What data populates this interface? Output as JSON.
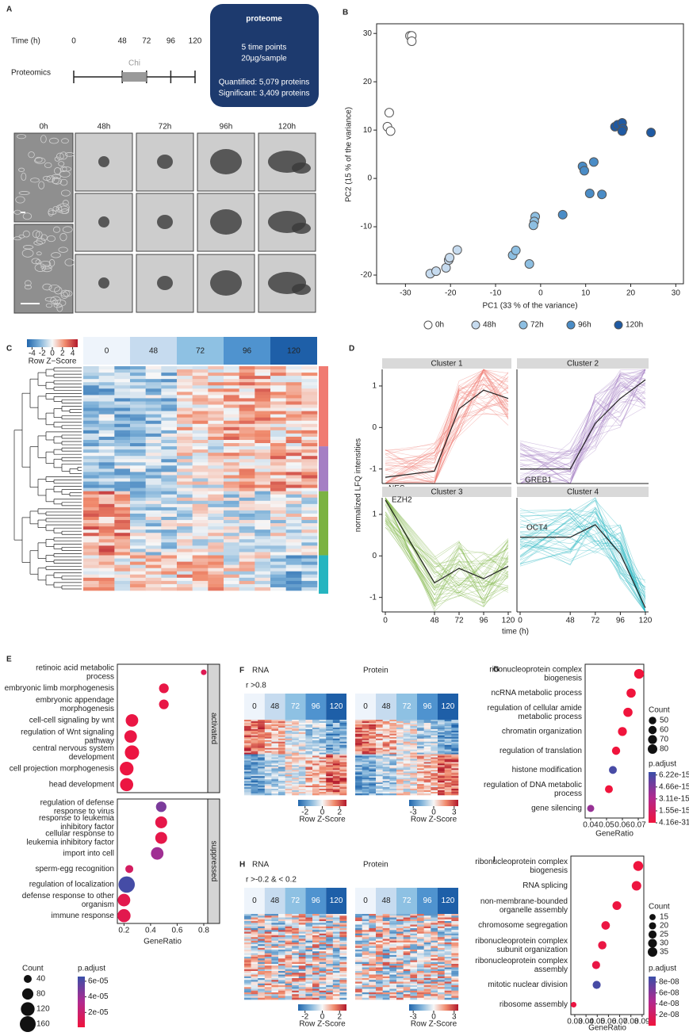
{
  "chart_data": [
    {
      "type": "timeline",
      "panel": "A",
      "axis_label": "Time (h)",
      "xlim": [
        0,
        120
      ],
      "xticks": [
        0,
        48,
        72,
        96,
        120
      ],
      "row_label": "Proteomics",
      "treatment": "Chi",
      "box_title": "proteome",
      "box_lines": [
        "5 time points",
        "20µg/sample",
        "Quantified: 5,079 proteins",
        "Significant: 3,409 proteins"
      ],
      "image_labels": [
        "0h",
        "48h",
        "72h",
        "96h",
        "120h"
      ]
    },
    {
      "type": "scatter",
      "panel": "B",
      "xlabel": "PC1 (33 % of the variance)",
      "ylabel": "PC2 (15  % of the variance)",
      "xlim": [
        -36.4,
        31.7
      ],
      "ylim": [
        -21.8,
        32
      ],
      "xticks": [
        -30,
        -20,
        -10,
        0,
        10,
        20,
        30
      ],
      "yticks": [
        -20,
        -10,
        0,
        10,
        20,
        30
      ],
      "legend": "bottom",
      "series": [
        {
          "name": "0h",
          "color": "#ffffff",
          "x": [
            -29,
            -28.6,
            -28.6,
            -33.6,
            -34,
            -33.3
          ],
          "y": [
            29.5,
            29.5,
            28.4,
            13.6,
            10.7,
            9.8
          ]
        },
        {
          "name": "48h",
          "color": "#c6dbef",
          "x": [
            -24.5,
            -23.2,
            -21,
            -20.4,
            -20.2,
            -18.5
          ],
          "y": [
            -19.7,
            -19.2,
            -18.5,
            -16.9,
            -16.4,
            -14.8
          ]
        },
        {
          "name": "72h",
          "color": "#8dbfe2",
          "x": [
            -6.2,
            -5.5,
            -2.5,
            -1.2,
            -1.4,
            -1.6
          ],
          "y": [
            -15.9,
            -14.9,
            -17.7,
            -7.9,
            -8.9,
            -9.7
          ]
        },
        {
          "name": "96h",
          "color": "#4a8cc6",
          "x": [
            4.9,
            9.3,
            9.7,
            10.9,
            11.8,
            13.6
          ],
          "y": [
            -7.5,
            2.5,
            1.6,
            -3.1,
            3.4,
            -3.3
          ]
        },
        {
          "name": "120h",
          "color": "#1f5aa3",
          "x": [
            16.5,
            17.1,
            18.1,
            18.3,
            18.1,
            24.5
          ],
          "y": [
            10.7,
            11.1,
            11.5,
            10.3,
            9.8,
            9.5
          ]
        }
      ]
    },
    {
      "type": "heatmap",
      "panel": "C",
      "columns": [
        0,
        48,
        72,
        96,
        120
      ],
      "colorbar_label": "Row Z−Score",
      "colorbar_ticks": [
        -4,
        -2,
        0,
        2,
        4
      ],
      "colorbar_lim": [
        -5,
        5
      ]
    },
    {
      "type": "line",
      "panel": "D",
      "xlabel": "time (h)",
      "ylabel": "normalized LFQ intensities",
      "xlim": [
        0,
        120
      ],
      "xticks": [
        0,
        48,
        72,
        96,
        120
      ],
      "ylim": [
        -1.35,
        1.4
      ],
      "yticks": [
        -1,
        0,
        1
      ],
      "x": [
        0,
        48,
        72,
        96,
        120
      ],
      "facets": [
        {
          "title": "Cluster 1",
          "color": "#f07b72",
          "label": "NES",
          "values": [
            -1.2,
            -1.05,
            0.45,
            0.9,
            0.7
          ]
        },
        {
          "title": "Cluster 2",
          "color": "#a57fc4",
          "label": "GREB1",
          "values": [
            -1.0,
            -1.0,
            0.1,
            0.7,
            1.15
          ]
        },
        {
          "title": "Cluster 3",
          "color": "#7cb342",
          "label": "EZH2",
          "values": [
            1.35,
            -0.65,
            -0.3,
            -0.55,
            -0.25
          ]
        },
        {
          "title": "Cluster 4",
          "color": "#26b5c0",
          "label": "OCT4",
          "values": [
            0.45,
            0.45,
            0.75,
            0.05,
            -1.25
          ]
        }
      ]
    },
    {
      "type": "dot",
      "panel": "E",
      "xlabel": "GeneRatio",
      "xlim": [
        0.15,
        0.83
      ],
      "xticks": [
        0.2,
        0.4,
        0.6,
        0.8
      ],
      "facets": [
        {
          "title": "activated",
          "categories": [
            "retinoic acid metabolic\nprocess",
            "embryonic limb morphogenesis",
            "embryonic appendage\nmorphogenesis",
            "cell-cell signaling by wnt",
            "regulation of Wnt signaling\npathway",
            "central nervous system\ndevelopment",
            "cell projection morphogenesis",
            "head development"
          ],
          "x": [
            0.8,
            0.5,
            0.5,
            0.26,
            0.25,
            0.26,
            0.22,
            0.22
          ],
          "count": [
            20,
            60,
            60,
            100,
            100,
            130,
            120,
            110
          ],
          "p_adjust": [
            1e-05,
            5e-06,
            5e-06,
            4e-06,
            4e-06,
            3e-06,
            3e-06,
            3e-06
          ]
        },
        {
          "title": "suppressed",
          "categories": [
            "regulation of defense\nresponse to virus",
            "response to leukemia\ninhibitory factor",
            "cellular response to\nleukemia inhibitory factor",
            "import into cell",
            "sperm-egg recognition",
            "regulation of localization",
            "defense response to other\norganism",
            "immune response"
          ],
          "x": [
            0.48,
            0.48,
            0.48,
            0.45,
            0.24,
            0.22,
            0.2,
            0.2
          ],
          "count": [
            70,
            90,
            90,
            100,
            40,
            170,
            100,
            110
          ],
          "p_adjust": [
            4.8e-05,
            6e-06,
            6e-06,
            3.8e-05,
            1.5e-05,
            6.3e-05,
            8e-06,
            8e-06
          ]
        }
      ],
      "size_legend": {
        "title": "Count",
        "values": [
          40,
          80,
          120,
          160
        ]
      },
      "color_legend": {
        "title": "p.adjust",
        "colors": [
          "#f0143c",
          "#b02a90",
          "#3a4fa8"
        ],
        "lim": [
          1e-06,
          6.6e-05
        ],
        "ticks": [
          {
            "value": 6e-05,
            "label": "6e-05"
          },
          {
            "value": 4e-05,
            "label": "4e-05"
          },
          {
            "value": 2e-05,
            "label": "2e-05"
          }
        ]
      }
    },
    {
      "type": "heatmap_pair",
      "panel": "F",
      "left_title": "RNA",
      "right_title": "Protein",
      "subtitle": "r >0.8",
      "columns": [
        0,
        48,
        72,
        96,
        120
      ],
      "colorbar_label": "Row Z-Score",
      "left_ticks": [
        -2,
        0,
        2
      ],
      "left_lim": [
        -2.8,
        2.8
      ],
      "right_ticks": [
        -3,
        0,
        3
      ],
      "right_lim": [
        -3.6,
        3.6
      ]
    },
    {
      "type": "dot",
      "panel": "G",
      "xlabel": "GeneRatio",
      "xlim": [
        0.0365,
        0.0735
      ],
      "xticks": [
        0.04,
        0.05,
        0.06,
        0.07
      ],
      "categories": [
        "ribonucleoprotein complex\nbiogenesis",
        "ncRNA metabolic process",
        "regulation of cellular amide\nmetabolic process",
        "chromatin organization",
        "regulation of translation",
        "histone modification",
        "regulation of DNA metabolic\nprocess",
        "gene silencing"
      ],
      "x": [
        0.0705,
        0.0655,
        0.0635,
        0.06,
        0.056,
        0.054,
        0.0515,
        0.04
      ],
      "count": [
        85,
        75,
        75,
        70,
        60,
        55,
        55,
        45
      ],
      "p_adjust": [
        4.16e-31,
        1e-20,
        1e-19,
        1e-18,
        1e-17,
        6.2e-15,
        1e-18,
        4e-15
      ],
      "size_legend": {
        "title": "Count",
        "values": [
          50,
          60,
          70,
          80
        ]
      },
      "color_legend": {
        "title": "p.adjust",
        "colors": [
          "#f0143c",
          "#b02a90",
          "#3a4fa8"
        ],
        "lim": [
          0,
          6.6e-15
        ],
        "ticks": [
          6.22e-15,
          4.66e-15,
          3.11e-15,
          1.55e-15,
          4.16e-31
        ]
      }
    },
    {
      "type": "heatmap_pair",
      "panel": "H",
      "left_title": "RNA",
      "right_title": "Protein",
      "subtitle": "r >-0.2 & < 0.2",
      "columns": [
        0,
        48,
        72,
        96,
        120
      ],
      "colorbar_label": "Row Z-Score",
      "left_ticks": [
        -2,
        0,
        2
      ],
      "left_lim": [
        -2.8,
        2.8
      ],
      "right_ticks": [
        -3,
        0,
        3
      ],
      "right_lim": [
        -3.6,
        3.6
      ]
    },
    {
      "type": "dot",
      "panel": "I",
      "xlabel": "GeneRatio",
      "xlim": [
        0.0265,
        0.0915
      ],
      "xticks": [
        0.03,
        0.04,
        0.05,
        0.06,
        0.07,
        0.08,
        0.09
      ],
      "categories": [
        "ribonucleoprotein complex\nbiogenesis",
        "RNA splicing",
        "non-membrane-bounded\norganelle assembly",
        "chromosome segregation",
        "ribonucleoprotein complex\nsubunit organization",
        "ribonucleoprotein complex\nassembly",
        "mitotic nuclear division",
        "ribosome assembly"
      ],
      "x": [
        0.0865,
        0.085,
        0.0675,
        0.0575,
        0.0545,
        0.049,
        0.0495,
        0.029
      ],
      "count": [
        38,
        35,
        30,
        28,
        27,
        25,
        25,
        12
      ],
      "p_adjust": [
        1e-09,
        2e-09,
        2e-09,
        3e-09,
        4e-09,
        5e-09,
        8.5e-08,
        3e-09
      ],
      "size_legend": {
        "title": "Count",
        "values": [
          15,
          20,
          25,
          30,
          35
        ]
      },
      "color_legend": {
        "title": "p.adjust",
        "colors": [
          "#f0143c",
          "#b02a90",
          "#3a4fa8"
        ],
        "lim": [
          0,
          9e-08
        ],
        "ticks": [
          {
            "value": 8e-08,
            "label": "8e-08"
          },
          {
            "value": 6e-08,
            "label": "6e-08"
          },
          {
            "value": 4e-08,
            "label": "4e-08"
          },
          {
            "value": 2e-08,
            "label": "2e-08"
          }
        ]
      }
    }
  ]
}
